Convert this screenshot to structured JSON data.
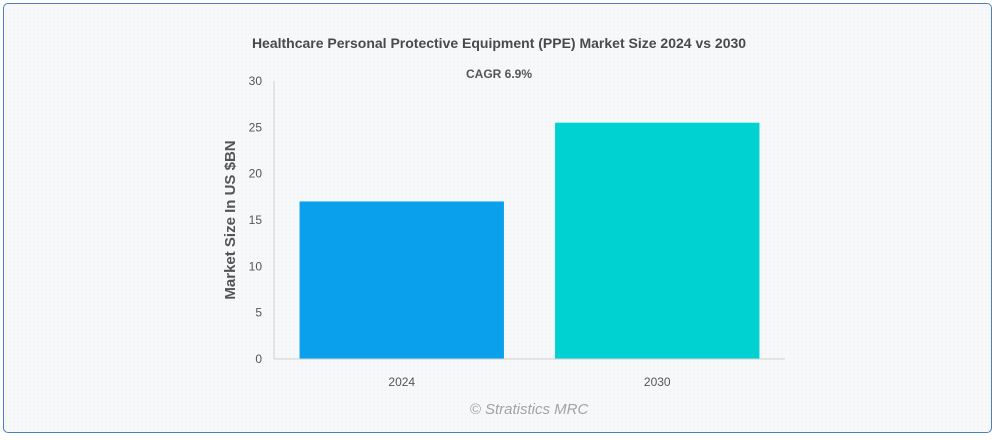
{
  "chart_data": {
    "type": "bar",
    "title": "Healthcare Personal Protective Equipment (PPE) Market Size 2024 vs 2030",
    "subtitle": "CAGR 6.9%",
    "xlabel": "",
    "ylabel": "Market Size In US $BN",
    "categories": [
      "2024",
      "2030"
    ],
    "values": [
      17.0,
      25.5
    ],
    "colors": [
      "#0aa0ec",
      "#00d2d2"
    ],
    "ylim": [
      0,
      30
    ],
    "yticks": [
      0,
      5,
      10,
      15,
      20,
      25,
      30
    ],
    "grid": false,
    "legend": "none"
  },
  "watermark": "© Stratistics MRC"
}
